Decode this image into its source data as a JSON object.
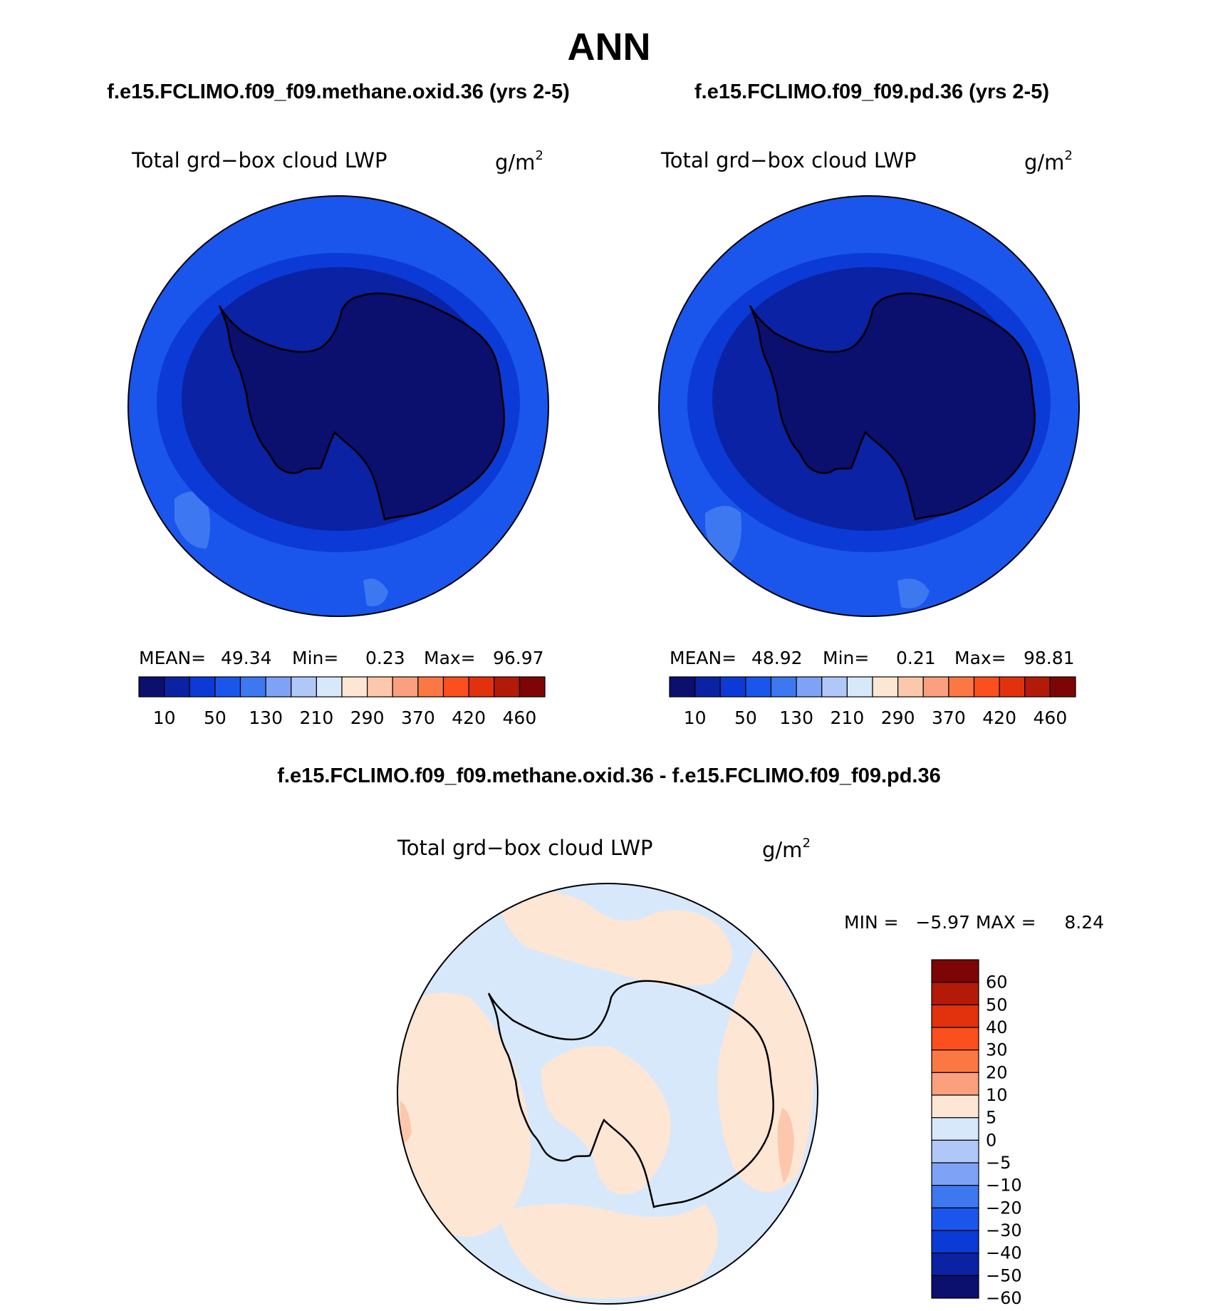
{
  "figure": {
    "season": "ANN",
    "panels": [
      {
        "case_title": "f.e15.FCLIMO.f09_f09.methane.oxid.36 (yrs 2-5)",
        "variable": "Total grd−box cloud LWP",
        "units": "g/m",
        "units_exp": "2",
        "stats": {
          "mean_label": "MEAN=",
          "mean": "49.34",
          "min_label": "Min=",
          "min": "0.23",
          "max_label": "Max=",
          "max": "96.97"
        }
      },
      {
        "case_title": "f.e15.FCLIMO.f09_f09.pd.36 (yrs 2-5)",
        "variable": "Total grd−box cloud LWP",
        "units": "g/m",
        "units_exp": "2",
        "stats": {
          "mean_label": "MEAN=",
          "mean": "48.92",
          "min_label": "Min=",
          "min": "0.21",
          "max_label": "Max=",
          "max": "98.81"
        }
      }
    ],
    "diff": {
      "title": "f.e15.FCLIMO.f09_f09.methane.oxid.36 - f.e15.FCLIMO.f09_f09.pd.36",
      "variable": "Total grd−box cloud LWP",
      "units": "g/m",
      "units_exp": "2",
      "min_max_text": "MIN =   −5.97 MAX =     8.24"
    },
    "colorbar_top": {
      "colors": [
        "#0b0f6e",
        "#0a22a3",
        "#0b3ad6",
        "#1a56ec",
        "#3e78f1",
        "#7ea2f5",
        "#b0c8f8",
        "#d8e8fb",
        "#fde6d4",
        "#fcc7ab",
        "#fba07e",
        "#fb7844",
        "#fb4f1d",
        "#e1320d",
        "#b31a07",
        "#7d0505"
      ],
      "tick_labels": [
        "10",
        "50",
        "130",
        "210",
        "290",
        "370",
        "420",
        "460"
      ]
    },
    "colorbar_diff": {
      "colors": [
        "#0b0f6e",
        "#0a22a3",
        "#0b3ad6",
        "#1a56ec",
        "#3e78f1",
        "#7ea2f5",
        "#b0c8f8",
        "#d8e8fb",
        "#fde6d4",
        "#fba07e",
        "#fb7844",
        "#fb4f1d",
        "#e1320d",
        "#b31a07",
        "#7d0505"
      ],
      "tick_labels": [
        "60",
        "50",
        "40",
        "30",
        "20",
        "10",
        "5",
        "0",
        "−5",
        "−10",
        "−20",
        "−30",
        "−40",
        "−50",
        "−60"
      ]
    },
    "map_colors": {
      "ocean_mean": "#1a56ec",
      "ring_1": "#0b3ad6",
      "ring_2": "#0a22a3",
      "continent": "#0b0f6e",
      "patch_light": "#3e78f1",
      "diff_positive": "#fde6d4",
      "diff_negative": "#d8e8fb",
      "diff_strong": "#fcc7ab"
    }
  }
}
